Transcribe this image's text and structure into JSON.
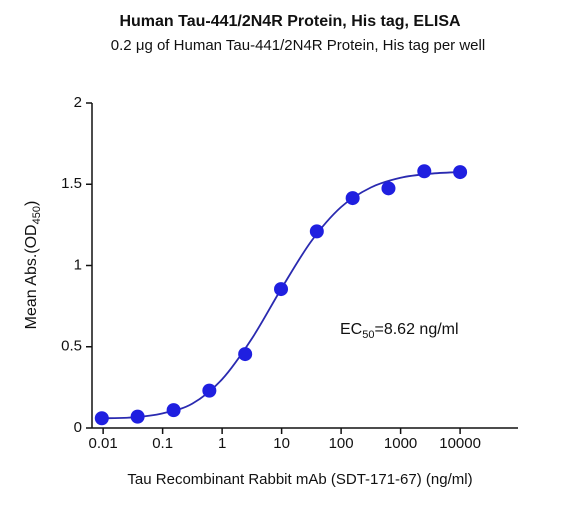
{
  "chart_data": {
    "type": "scatter",
    "title": "Human Tau-441/2N4R Protein, His tag, ELISA",
    "subtitle": "0.2 μg of Human Tau-441/2N4R Protein, His tag per well",
    "x_label": "Tau Recombinant Rabbit mAb (SDT-171-67) (ng/ml)",
    "y_label": [
      "Mean Abs.(OD",
      "450",
      ")"
    ],
    "annotation": [
      "EC",
      "50",
      "=8.62 ng/ml"
    ],
    "x": [
      0.0095,
      0.038,
      0.153,
      0.61,
      2.44,
      9.77,
      39.06,
      156.25,
      625,
      2500,
      10000
    ],
    "values": [
      0.06,
      0.07,
      0.11,
      0.23,
      0.455,
      0.855,
      1.21,
      1.415,
      1.475,
      1.58,
      1.575
    ],
    "color": "#1f1fe0",
    "curve": {
      "x": [
        0.01,
        0.0316,
        0.1,
        0.316,
        1,
        3.16,
        10,
        31.6,
        100,
        316,
        1000,
        3162,
        10000
      ],
      "values": [
        0.06,
        0.065,
        0.09,
        0.15,
        0.3,
        0.55,
        0.86,
        1.15,
        1.36,
        1.48,
        1.54,
        1.565,
        1.575
      ],
      "color": "#2a2ab0"
    },
    "log_x": true,
    "xlim": [
      0.0065,
      94000
    ],
    "xticks": [
      0.01,
      0.1,
      1,
      10,
      100,
      1000,
      10000
    ],
    "ylim": [
      0,
      2
    ],
    "yticks": [
      0,
      0.5,
      1,
      1.5,
      2
    ]
  }
}
